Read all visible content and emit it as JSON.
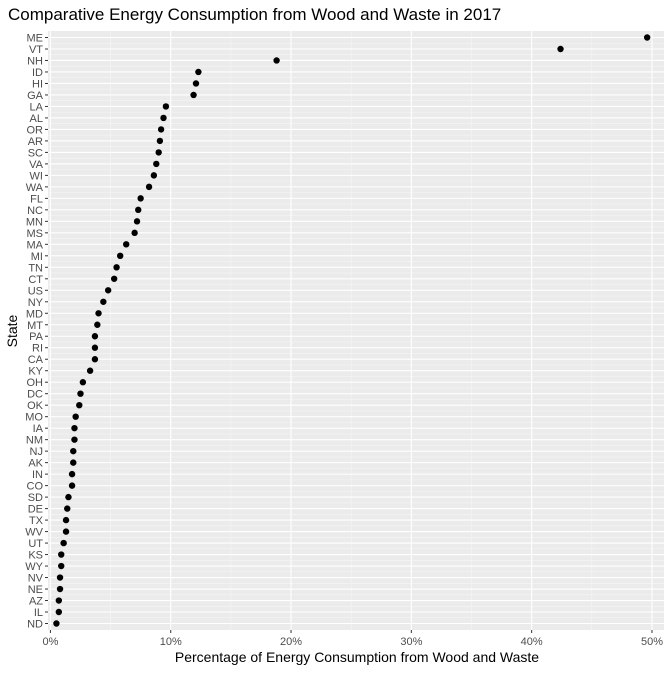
{
  "chart_data": {
    "type": "scatter",
    "title": "Comparative Energy Consumption from Wood and Waste in 2017",
    "xlabel": "Percentage of Energy Consumption from Wood and Waste",
    "ylabel": "State",
    "xlim": [
      -0.2,
      51.0
    ],
    "x_ticks": [
      0,
      10,
      20,
      30,
      40,
      50
    ],
    "x_tick_labels": [
      "0%",
      "10%",
      "20%",
      "30%",
      "40%",
      "50%"
    ],
    "grid": true,
    "colors": {
      "panel": "#ebebeb",
      "grid_major": "#ffffff",
      "grid_minor": "#f5f5f5",
      "point": "#000000",
      "text": "#000000",
      "tick_text": "#4d4d4d"
    },
    "points": [
      {
        "state": "ME",
        "value": 49.6
      },
      {
        "state": "VT",
        "value": 42.4
      },
      {
        "state": "NH",
        "value": 18.8
      },
      {
        "state": "ID",
        "value": 12.3
      },
      {
        "state": "HI",
        "value": 12.1
      },
      {
        "state": "GA",
        "value": 11.9
      },
      {
        "state": "LA",
        "value": 9.6
      },
      {
        "state": "AL",
        "value": 9.4
      },
      {
        "state": "OR",
        "value": 9.2
      },
      {
        "state": "AR",
        "value": 9.1
      },
      {
        "state": "SC",
        "value": 9.0
      },
      {
        "state": "VA",
        "value": 8.8
      },
      {
        "state": "WI",
        "value": 8.6
      },
      {
        "state": "WA",
        "value": 8.2
      },
      {
        "state": "FL",
        "value": 7.5
      },
      {
        "state": "NC",
        "value": 7.3
      },
      {
        "state": "MN",
        "value": 7.2
      },
      {
        "state": "MS",
        "value": 7.0
      },
      {
        "state": "MA",
        "value": 6.3
      },
      {
        "state": "MI",
        "value": 5.8
      },
      {
        "state": "TN",
        "value": 5.5
      },
      {
        "state": "CT",
        "value": 5.3
      },
      {
        "state": "US",
        "value": 4.8
      },
      {
        "state": "NY",
        "value": 4.4
      },
      {
        "state": "MD",
        "value": 4.0
      },
      {
        "state": "MT",
        "value": 3.9
      },
      {
        "state": "PA",
        "value": 3.7
      },
      {
        "state": "RI",
        "value": 3.7
      },
      {
        "state": "CA",
        "value": 3.7
      },
      {
        "state": "KY",
        "value": 3.3
      },
      {
        "state": "OH",
        "value": 2.7
      },
      {
        "state": "DC",
        "value": 2.5
      },
      {
        "state": "OK",
        "value": 2.4
      },
      {
        "state": "MO",
        "value": 2.1
      },
      {
        "state": "IA",
        "value": 2.0
      },
      {
        "state": "NM",
        "value": 2.0
      },
      {
        "state": "NJ",
        "value": 1.9
      },
      {
        "state": "AK",
        "value": 1.9
      },
      {
        "state": "IN",
        "value": 1.8
      },
      {
        "state": "CO",
        "value": 1.8
      },
      {
        "state": "SD",
        "value": 1.5
      },
      {
        "state": "DE",
        "value": 1.4
      },
      {
        "state": "TX",
        "value": 1.3
      },
      {
        "state": "WV",
        "value": 1.3
      },
      {
        "state": "UT",
        "value": 1.1
      },
      {
        "state": "KS",
        "value": 0.9
      },
      {
        "state": "WY",
        "value": 0.9
      },
      {
        "state": "NV",
        "value": 0.8
      },
      {
        "state": "NE",
        "value": 0.8
      },
      {
        "state": "AZ",
        "value": 0.7
      },
      {
        "state": "IL",
        "value": 0.7
      },
      {
        "state": "ND",
        "value": 0.5
      }
    ]
  }
}
